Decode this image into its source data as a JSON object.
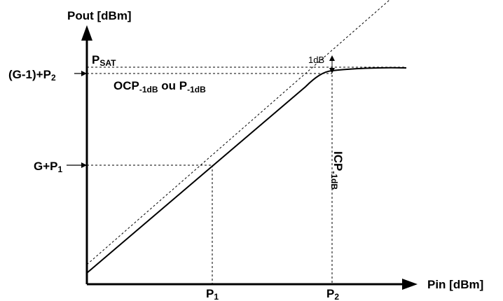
{
  "diagram": {
    "y_axis_label": "Pout [dBm]",
    "x_axis_label": "Pin [dBm]",
    "psat": {
      "main": "P",
      "sub": "SAT"
    },
    "ocp": {
      "main1": "OCP",
      "sub1": "-1dB",
      "mid": " ou P",
      "sub2": "-1dB"
    },
    "gp2": {
      "main": "(G-1)+P",
      "sub": "2"
    },
    "gp1": {
      "main": "G+P",
      "sub": "1"
    },
    "p1": {
      "main": "P",
      "sub": "1"
    },
    "p2": {
      "main": "P",
      "sub": "2"
    },
    "one_db": "1dB",
    "icp": {
      "main": "ICP",
      "sub": "-1dB"
    }
  }
}
